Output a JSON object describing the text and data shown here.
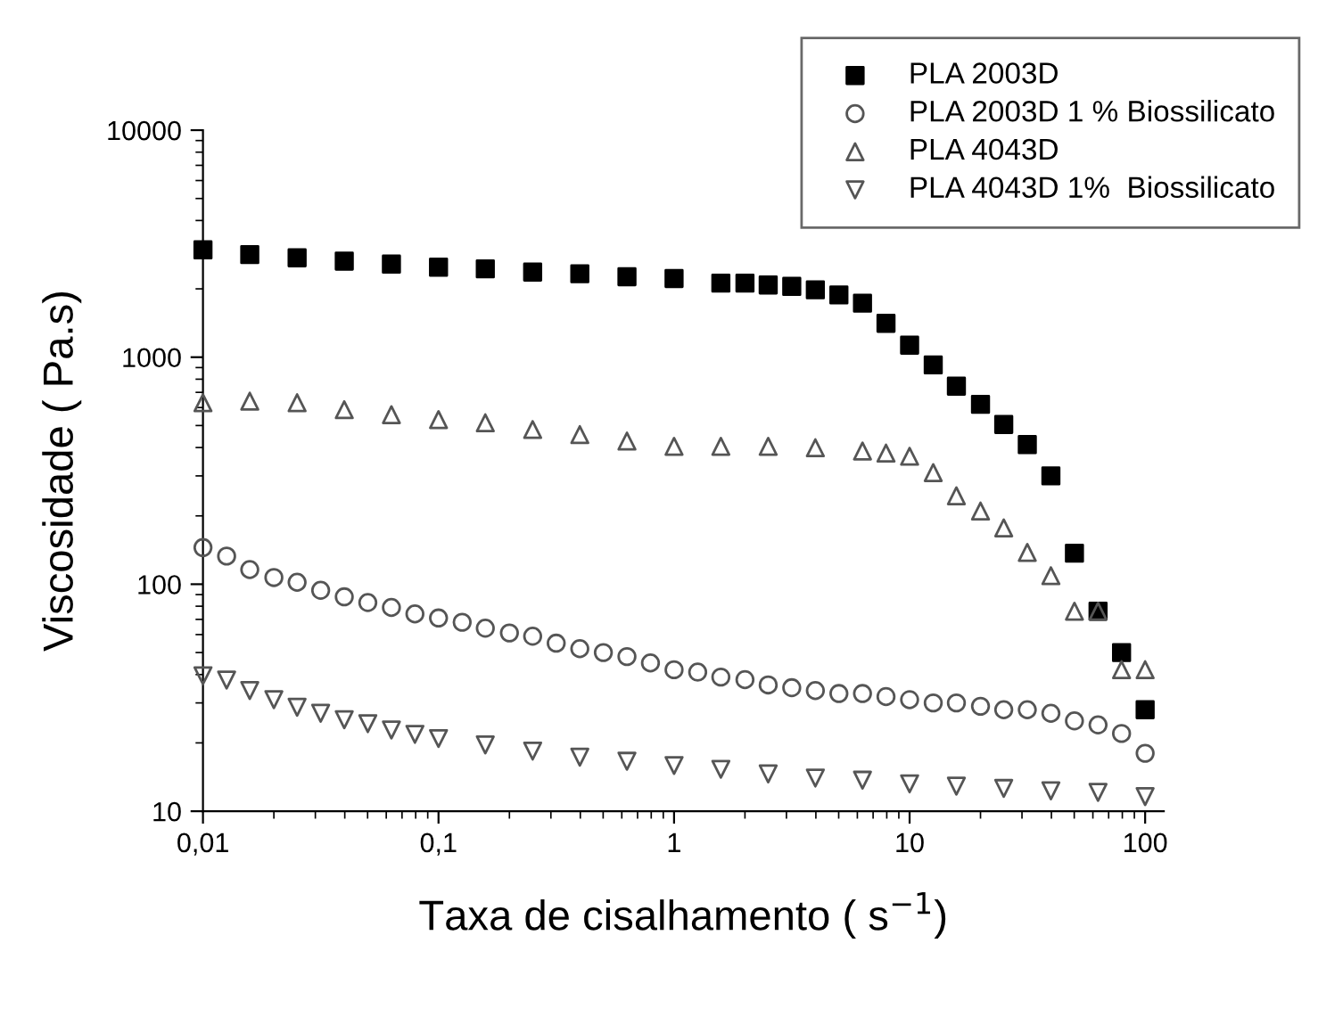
{
  "chart_data": {
    "type": "scatter",
    "xlabel": "Taxa de cisalhamento ( s$^{−1}$)",
    "ylabel": "Viscosidade ( Pa.s)",
    "log": "xy",
    "xlim": [
      0.01,
      120
    ],
    "ylim": [
      10,
      10000
    ],
    "xticks": [
      {
        "value": 0.01,
        "label": "0,01"
      },
      {
        "value": 0.1,
        "label": "0,1"
      },
      1,
      10,
      100
    ],
    "yticks": [
      10,
      100,
      1000,
      10000
    ],
    "grid": false,
    "legend": "top right",
    "series": [
      {
        "name": "PLA 2003D",
        "color": "#000000",
        "marker": "square",
        "x": [
          0.01,
          0.0158,
          0.0251,
          0.0398,
          0.0631,
          0.1,
          0.158,
          0.251,
          0.398,
          0.631,
          1,
          1.58,
          2,
          2.51,
          3.16,
          3.98,
          5.01,
          6.31,
          7.94,
          10,
          12.6,
          15.8,
          20,
          25.1,
          31.6,
          39.8,
          50.1,
          63.1,
          79.4,
          100
        ],
        "values": [
          2970,
          2830,
          2740,
          2650,
          2570,
          2490,
          2450,
          2370,
          2330,
          2260,
          2220,
          2120,
          2120,
          2080,
          2050,
          1980,
          1880,
          1730,
          1410,
          1130,
          925,
          745,
          620,
          505,
          412,
          300,
          137,
          76,
          50,
          28
        ]
      },
      {
        "name": "PLA 2003D 1 % Biossilicato",
        "color": "#555555",
        "marker": "circle",
        "x": [
          0.01,
          0.0126,
          0.0158,
          0.02,
          0.0251,
          0.0316,
          0.0398,
          0.0501,
          0.0631,
          0.0794,
          0.1,
          0.126,
          0.158,
          0.2,
          0.251,
          0.316,
          0.398,
          0.501,
          0.631,
          0.794,
          1,
          1.26,
          1.58,
          2,
          2.51,
          3.16,
          3.98,
          5.01,
          6.31,
          7.94,
          10,
          12.6,
          15.8,
          20,
          25.1,
          31.6,
          39.8,
          50.1,
          63.1,
          79.4,
          100
        ],
        "values": [
          145,
          133,
          116,
          107,
          102,
          94,
          88,
          83,
          79,
          74,
          71,
          68,
          64,
          61,
          59,
          55,
          52,
          50,
          48,
          45,
          42,
          41,
          39,
          38,
          36,
          35,
          34,
          33,
          33,
          32,
          31,
          30,
          30,
          29,
          28,
          28,
          27,
          25,
          24,
          22,
          18
        ]
      },
      {
        "name": "PLA 4043D",
        "color": "#555555",
        "marker": "triangle",
        "x": [
          0.01,
          0.0158,
          0.0251,
          0.0398,
          0.0631,
          0.1,
          0.158,
          0.251,
          0.398,
          0.631,
          1,
          1.58,
          2.51,
          3.98,
          6.31,
          7.94,
          10,
          12.6,
          15.8,
          20,
          25.1,
          31.6,
          39.8,
          50.1,
          63.1,
          79.4,
          100
        ],
        "values": [
          630,
          640,
          630,
          587,
          558,
          531,
          514,
          480,
          456,
          427,
          405,
          405,
          405,
          399,
          386,
          378,
          366,
          310,
          245,
          210,
          177,
          138,
          109,
          76,
          76,
          42,
          42
        ]
      },
      {
        "name": "PLA 4043D 1%  Biossilicato",
        "color": "#555555",
        "marker": "triangle_down",
        "x": [
          0.01,
          0.0126,
          0.0158,
          0.02,
          0.0251,
          0.0316,
          0.0398,
          0.0501,
          0.0631,
          0.0794,
          0.1,
          0.158,
          0.251,
          0.398,
          0.631,
          1,
          1.58,
          2.51,
          3.98,
          6.31,
          10,
          15.8,
          25.1,
          39.8,
          63.1,
          100
        ],
        "values": [
          39.5,
          37.8,
          34,
          31,
          28.7,
          27,
          25.3,
          24.3,
          22.8,
          21.8,
          20.9,
          19.6,
          18.4,
          17.3,
          16.6,
          15.9,
          15.3,
          14.6,
          14,
          13.7,
          13.2,
          12.9,
          12.6,
          12.3,
          12.1,
          11.6
        ]
      }
    ]
  }
}
